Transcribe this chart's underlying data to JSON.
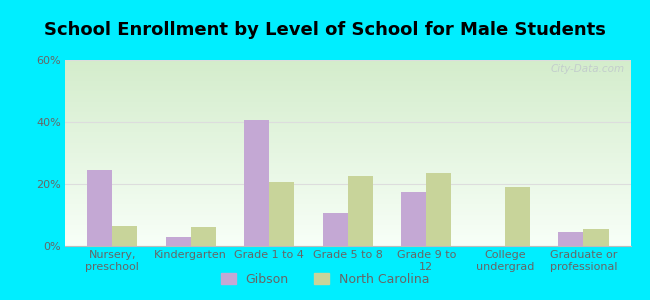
{
  "title": "School Enrollment by Level of School for Male Students",
  "categories": [
    "Nursery,\npreschool",
    "Kindergarten",
    "Grade 1 to 4",
    "Grade 5 to 8",
    "Grade 9 to\n12",
    "College\nundergrad",
    "Graduate or\nprofessional"
  ],
  "gibson_values": [
    24.5,
    3.0,
    40.5,
    10.5,
    17.5,
    0.0,
    4.5
  ],
  "nc_values": [
    6.5,
    6.0,
    20.5,
    22.5,
    23.5,
    19.0,
    5.5
  ],
  "gibson_color": "#c4a8d4",
  "nc_color": "#c8d49a",
  "ylim": [
    0,
    60
  ],
  "yticks": [
    0,
    20,
    40,
    60
  ],
  "ytick_labels": [
    "0%",
    "20%",
    "40%",
    "60%"
  ],
  "background_outer": "#00eeff",
  "bg_top": "#d4edcc",
  "bg_bottom": "#f8fff8",
  "bar_width": 0.32,
  "legend_labels": [
    "Gibson",
    "North Carolina"
  ],
  "title_fontsize": 13,
  "tick_fontsize": 8,
  "watermark": "City-Data.com",
  "grid_color": "#dddddd",
  "spine_color": "#bbbbbb",
  "label_color": "#666666"
}
